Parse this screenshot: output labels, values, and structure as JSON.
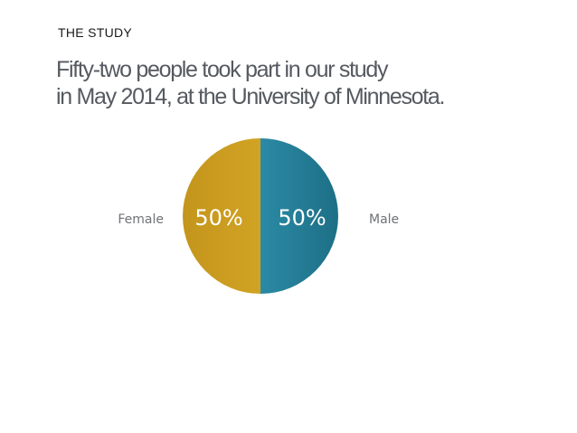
{
  "header": {
    "kicker": "THE STUDY",
    "headline_lines": [
      "Fifty-two people took part in our study",
      "in May 2014, at the University of Minnesota."
    ]
  },
  "colors": {
    "female": "#c99a1e",
    "female_light": "#dcae2b",
    "male": "#217a91",
    "male_light": "#2b8aa4",
    "label_text": "#6f7377",
    "slice_text": "#ffffff",
    "headline": "#555a60"
  },
  "chart_data": {
    "type": "pie",
    "title": "",
    "slices": [
      {
        "label": "Male",
        "value": 50,
        "data_label": "50%"
      },
      {
        "label": "Female",
        "value": 50,
        "data_label": "50%"
      }
    ],
    "start": "12 o'clock",
    "direction": "clockwise",
    "category_labels_position": "outside, left and right"
  }
}
